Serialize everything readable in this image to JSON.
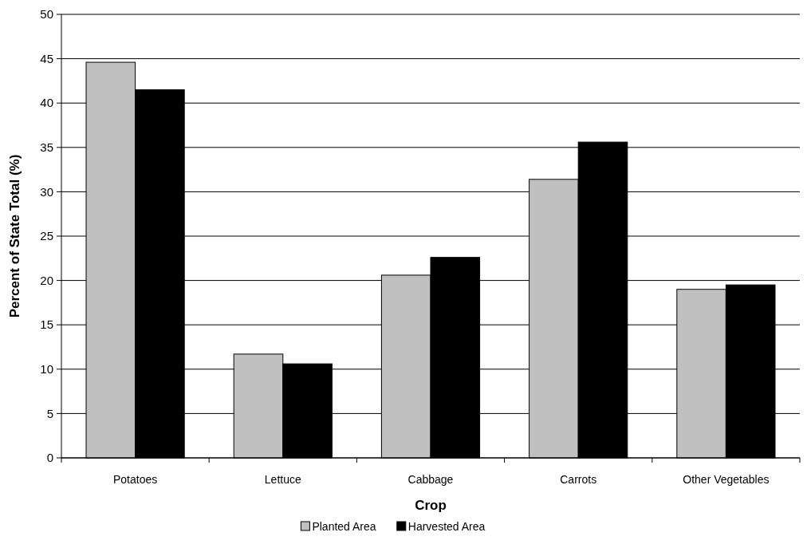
{
  "chart_data": {
    "type": "bar",
    "xlabel": "Crop",
    "ylabel": "Percent of State Total (%)",
    "categories": [
      "Potatoes",
      "Lettuce",
      "Cabbage",
      "Carrots",
      "Other Vegetables"
    ],
    "series": [
      {
        "name": "Planted Area",
        "color": "#c0c0c0",
        "values": [
          44.6,
          11.7,
          20.6,
          31.4,
          19.0
        ]
      },
      {
        "name": "Harvested Area",
        "color": "#000000",
        "values": [
          41.5,
          10.6,
          22.6,
          35.6,
          19.5
        ]
      }
    ],
    "ylim": [
      0,
      50
    ],
    "yticks": [
      0,
      5,
      10,
      15,
      20,
      25,
      30,
      35,
      40,
      45,
      50
    ],
    "grid": "y",
    "legend": "bottom"
  }
}
